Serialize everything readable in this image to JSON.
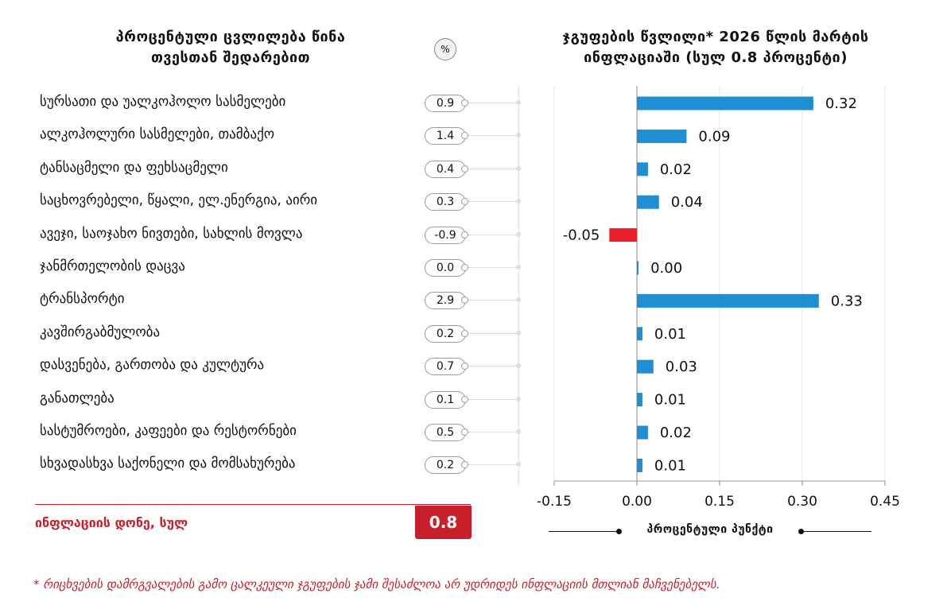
{
  "left_panel": {
    "title_line1": "პროცენტული ცვლილება წინა",
    "title_line2": "თვესთან შედარებით",
    "percent_badge": "%",
    "items": [
      {
        "label": "სურსათი და უალკოჰოლო სასმელები",
        "value": "0.9"
      },
      {
        "label": "ალკოჰოლური სასმელები, თამბაქო",
        "value": "1.4"
      },
      {
        "label": "ტანსაცმელი და ფეხსაცმელი",
        "value": "0.4"
      },
      {
        "label": "საცხოვრებელი, წყალი, ელ.ენერგია, აირი",
        "value": "0.3"
      },
      {
        "label": "ავეჯი, საოჯახო ნივთები, სახლის მოვლა",
        "value": "-0.9"
      },
      {
        "label": "ჯანმრთელობის დაცვა",
        "value": "0.0"
      },
      {
        "label": "ტრანსპორტი",
        "value": "2.9"
      },
      {
        "label": "კავშირგაბმულობა",
        "value": "0.2"
      },
      {
        "label": "დასვენება, გართობა და კულტურა",
        "value": "0.7"
      },
      {
        "label": "განათლება",
        "value": "0.1"
      },
      {
        "label": "სასტუმროები, კაფეები და რესტორნები",
        "value": "0.5"
      },
      {
        "label": "სხვადასხვა საქონელი და მომსახურება",
        "value": "0.2"
      }
    ],
    "total_label": "ინფლაციის დონე, სულ",
    "total_value": "0.8"
  },
  "right_panel": {
    "title_line1": "ჯგუფების წვლილი* 2026 წლის მარტის",
    "title_line2": "ინფლაციაში (სულ 0.8 პროცენტი)",
    "axis_caption": "პროცენტული პუნქტი"
  },
  "footnote": "* რიცხვების დამრგვალების გამო ცალკეული ჯგუფების ჯამი შესაძლოა არ უდრიდეს ინფლაციის მთლიან მაჩვენებელს.",
  "colors": {
    "positive": "#1f8fd1",
    "negative": "#e8202a",
    "accent": "#c8202a"
  },
  "chart_data": {
    "type": "bar",
    "orientation": "horizontal",
    "categories": [
      "სურსათი და უალკოჰოლო სასმელები",
      "ალკოჰოლური სასმელები, თამბაქო",
      "ტანსაცმელი და ფეხსაცმელი",
      "საცხოვრებელი, წყალი, ელ.ენერგია, აირი",
      "ავეჯი, საოჯახო ნივთები, სახლის მოვლა",
      "ჯანმრთელობის დაცვა",
      "ტრანსპორტი",
      "კავშირგაბმულობა",
      "დასვენება, გართობა და კულტურა",
      "განათლება",
      "სასტუმროები, კაფეები და რესტორნები",
      "სხვადასხვა საქონელი და მომსახურება"
    ],
    "values": [
      0.32,
      0.09,
      0.02,
      0.04,
      -0.05,
      0.003,
      0.33,
      0.01,
      0.03,
      0.01,
      0.02,
      0.01
    ],
    "value_labels": [
      "0.32",
      "0.09",
      "0.02",
      "0.04",
      "-0.05",
      "0.00",
      "0.33",
      "0.01",
      "0.03",
      "0.01",
      "0.02",
      "0.01"
    ],
    "xlim": [
      -0.15,
      0.45
    ],
    "xticks": [
      -0.15,
      0.0,
      0.15,
      0.3,
      0.45
    ],
    "xtick_labels": [
      "-0.15",
      "0.00",
      "0.15",
      "0.30",
      "0.45"
    ],
    "xlabel": "პროცენტული პუნქტი",
    "grid": true
  }
}
